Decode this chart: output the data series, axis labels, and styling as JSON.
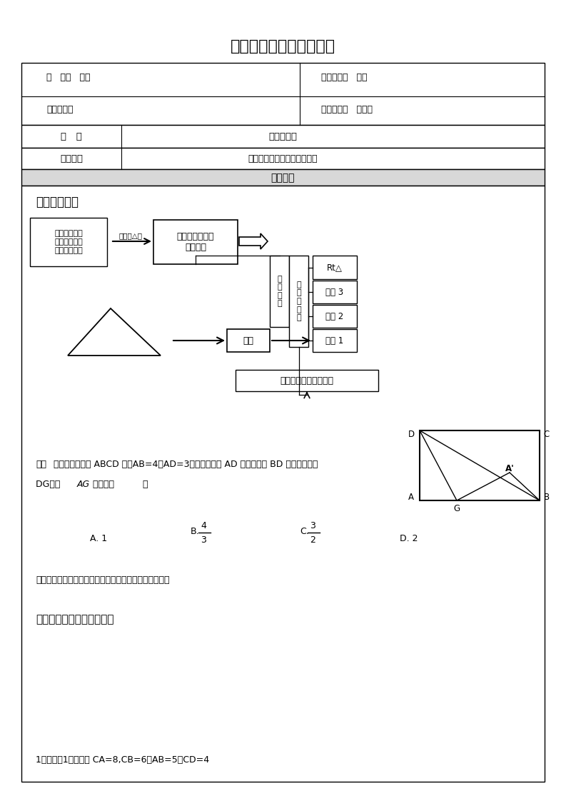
{
  "title": "陈老师家庭课堂辅导讲义",
  "info_row1_left": "年   级：   初三",
  "info_row2_left": "学生姓名：",
  "info_row1_right": "辅导科目：   数学",
  "info_row2_right": "辅导老师：   陈相远",
  "course_label": "课   题",
  "course_value": "相似三角形",
  "goal_label": "教学目的",
  "goal_value": "相似三角形的判定与性质复习",
  "content_header": "教学内容",
  "knowledge_title": "知识点归纳：",
  "box1_text": "三角形一边平\n行线的性质定\n理和判定定理",
  "arrow1_text": "应用于△中",
  "box2_text": "平行线分线段成\n比例定理",
  "box_judge_text": "判\n定\n定\n理",
  "box_similar_text": "相\n似\n三\n角\n形",
  "box_rt_text": "Rt△",
  "box_th3_text": "定理 3",
  "box_th2_text": "定理 2",
  "box_th1_text": "定理 1",
  "box_conclude_text": "推论",
  "box_property_text": "相似三角形的性质定理",
  "example_bold": "例：",
  "example_text": "如图，矩形纸片 ABCD 中，AB=4，AD=3，折叠纸片使 AD 边与对角线 BD 重合，折痕为",
  "example_text2": "DG，则 ",
  "example_italic": "AG",
  "example_text3": "的长为（          ）",
  "opt_a": "A. 1",
  "opt_b_pre": "B.",
  "opt_b_num": "4",
  "opt_b_den": "3",
  "opt_c_pre": "C.",
  "opt_c_num": "3",
  "opt_c_den": "2",
  "opt_d": "D. 2",
  "note_text": "备注：使用多种方法解此题，对比一下哪一种更加方便。",
  "summary_title": "梳理相似三角形基本图形：",
  "problem1_text": "1、如图（1），已知 CA=8,CB=6，AB=5，CD=4",
  "bg_color": "#ffffff"
}
